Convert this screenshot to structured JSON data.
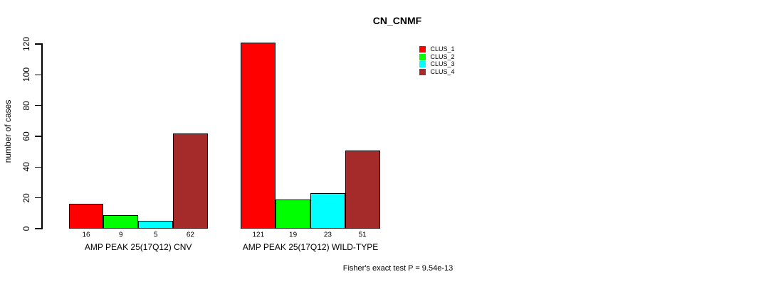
{
  "chart_data": {
    "type": "bar",
    "title": "CN_CNMF",
    "ylabel": "number of cases",
    "xlabel": "",
    "ylim": [
      0,
      120
    ],
    "yticks": [
      0,
      20,
      40,
      60,
      80,
      100,
      120
    ],
    "grid": false,
    "legend_position": "top-right-inside",
    "bar_border_color": "#000000",
    "categories": [
      "AMP PEAK 25(17Q12) CNV",
      "AMP PEAK 25(17Q12) WILD-TYPE"
    ],
    "series": [
      {
        "name": "CLUS_1",
        "color": "#FF0000",
        "values": [
          16,
          121
        ]
      },
      {
        "name": "CLUS_2",
        "color": "#00FF00",
        "values": [
          9,
          19
        ]
      },
      {
        "name": "CLUS_3",
        "color": "#00FFFF",
        "values": [
          5,
          23
        ]
      },
      {
        "name": "CLUS_4",
        "color": "#A52A2A",
        "values": [
          62,
          51
        ]
      }
    ],
    "bar_value_labels": [
      [
        "16",
        "9",
        "5",
        "62"
      ],
      [
        "121",
        "19",
        "23",
        "51"
      ]
    ],
    "annotation": "Fisher's exact test P = 9.54e-13"
  }
}
